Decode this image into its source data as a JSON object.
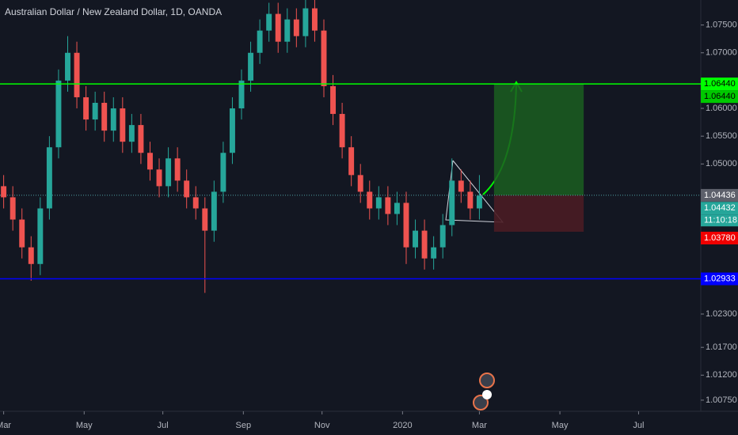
{
  "chart_data": {
    "type": "candlestick",
    "title": "Australian Dollar / New Zealand Dollar, 1D, OANDA",
    "x": [
      0,
      5,
      10,
      15,
      20,
      25,
      30,
      35,
      40,
      45,
      50,
      55,
      60,
      65,
      70,
      75,
      80,
      85,
      90,
      95,
      100,
      105,
      110,
      115,
      120,
      125,
      130,
      135,
      140,
      145,
      150,
      155,
      160,
      165,
      170,
      175,
      180,
      185,
      190,
      195,
      200,
      205,
      210,
      215,
      220,
      225,
      230,
      235,
      240,
      245,
      250,
      255,
      260
    ],
    "open": [
      1.046,
      1.044,
      1.04,
      1.035,
      1.032,
      1.042,
      1.053,
      1.065,
      1.07,
      1.062,
      1.058,
      1.061,
      1.056,
      1.06,
      1.054,
      1.057,
      1.052,
      1.049,
      1.046,
      1.051,
      1.047,
      1.044,
      1.042,
      1.038,
      1.045,
      1.052,
      1.06,
      1.065,
      1.07,
      1.074,
      1.077,
      1.072,
      1.076,
      1.073,
      1.078,
      1.074,
      1.064,
      1.059,
      1.053,
      1.048,
      1.045,
      1.042,
      1.044,
      1.041,
      1.043,
      1.035,
      1.038,
      1.033,
      1.035,
      1.039,
      1.047,
      1.045,
      1.042
    ],
    "high": [
      1.048,
      1.046,
      1.042,
      1.037,
      1.044,
      1.055,
      1.067,
      1.073,
      1.072,
      1.064,
      1.063,
      1.063,
      1.062,
      1.062,
      1.059,
      1.059,
      1.054,
      1.051,
      1.053,
      1.053,
      1.049,
      1.046,
      1.044,
      1.047,
      1.054,
      1.062,
      1.067,
      1.072,
      1.076,
      1.079,
      1.079,
      1.078,
      1.078,
      1.08,
      1.08,
      1.076,
      1.066,
      1.061,
      1.055,
      1.05,
      1.047,
      1.046,
      1.046,
      1.045,
      1.045,
      1.04,
      1.04,
      1.037,
      1.041,
      1.051,
      1.049,
      1.047,
      1.048
    ],
    "low": [
      1.042,
      1.038,
      1.033,
      1.029,
      1.03,
      1.04,
      1.051,
      1.063,
      1.06,
      1.056,
      1.056,
      1.054,
      1.054,
      1.052,
      1.052,
      1.05,
      1.047,
      1.044,
      1.044,
      1.045,
      1.042,
      1.04,
      1.0268,
      1.036,
      1.043,
      1.05,
      1.058,
      1.063,
      1.068,
      1.072,
      1.07,
      1.07,
      1.071,
      1.071,
      1.072,
      1.062,
      1.057,
      1.051,
      1.046,
      1.043,
      1.04,
      1.04,
      1.039,
      1.039,
      1.032,
      1.033,
      1.031,
      1.031,
      1.033,
      1.037,
      1.043,
      1.04,
      1.04
    ],
    "close": [
      1.044,
      1.04,
      1.035,
      1.032,
      1.042,
      1.053,
      1.065,
      1.07,
      1.062,
      1.058,
      1.061,
      1.056,
      1.06,
      1.054,
      1.057,
      1.052,
      1.049,
      1.046,
      1.051,
      1.047,
      1.044,
      1.042,
      1.038,
      1.045,
      1.052,
      1.06,
      1.065,
      1.07,
      1.074,
      1.077,
      1.072,
      1.076,
      1.073,
      1.078,
      1.074,
      1.064,
      1.059,
      1.053,
      1.048,
      1.045,
      1.042,
      1.044,
      1.041,
      1.043,
      1.035,
      1.038,
      1.033,
      1.035,
      1.039,
      1.047,
      1.045,
      1.042,
      1.0443
    ],
    "up_color": "#26a69a",
    "down_color": "#ef5350",
    "xlim": [
      -2,
      381
    ],
    "ylim": [
      1.0055,
      1.0795
    ],
    "xticks": [
      {
        "value": 0,
        "label": "Mar"
      },
      {
        "value": 44,
        "label": "May"
      },
      {
        "value": 87,
        "label": "Jul"
      },
      {
        "value": 131,
        "label": "Sep"
      },
      {
        "value": 174,
        "label": "Nov"
      },
      {
        "value": 218,
        "label": "2020"
      },
      {
        "value": 260,
        "label": "Mar"
      },
      {
        "value": 304,
        "label": "May"
      },
      {
        "value": 347,
        "label": "Jul"
      }
    ],
    "yticks": [
      {
        "value": 1.075,
        "label": "1.07500"
      },
      {
        "value": 1.07,
        "label": "1.07000"
      },
      {
        "value": 1.06,
        "label": "1.06000"
      },
      {
        "value": 1.055,
        "label": "1.05500"
      },
      {
        "value": 1.05,
        "label": "1.05000"
      },
      {
        "value": 1.023,
        "label": "1.02300"
      },
      {
        "value": 1.017,
        "label": "1.01700"
      },
      {
        "value": 1.012,
        "label": "1.01200"
      },
      {
        "value": 1.0075,
        "label": "1.00750"
      }
    ],
    "levels": [
      {
        "value": 1.0644,
        "label": "1.06440",
        "color": "#00ff00"
      },
      {
        "value": 1.02933,
        "label": "1.02933",
        "color": "#0000ff"
      }
    ],
    "position": {
      "start": 268,
      "end": 317,
      "target": {
        "value": 1.0644,
        "label": "1.06440"
      },
      "entry": {
        "value": 1.04436,
        "label": "1.04436"
      },
      "stop": {
        "value": 1.0378,
        "label": "1.03780"
      }
    },
    "last_price": {
      "value": 1.04432,
      "label": "1.04432"
    },
    "countdown": "11:10:18"
  }
}
